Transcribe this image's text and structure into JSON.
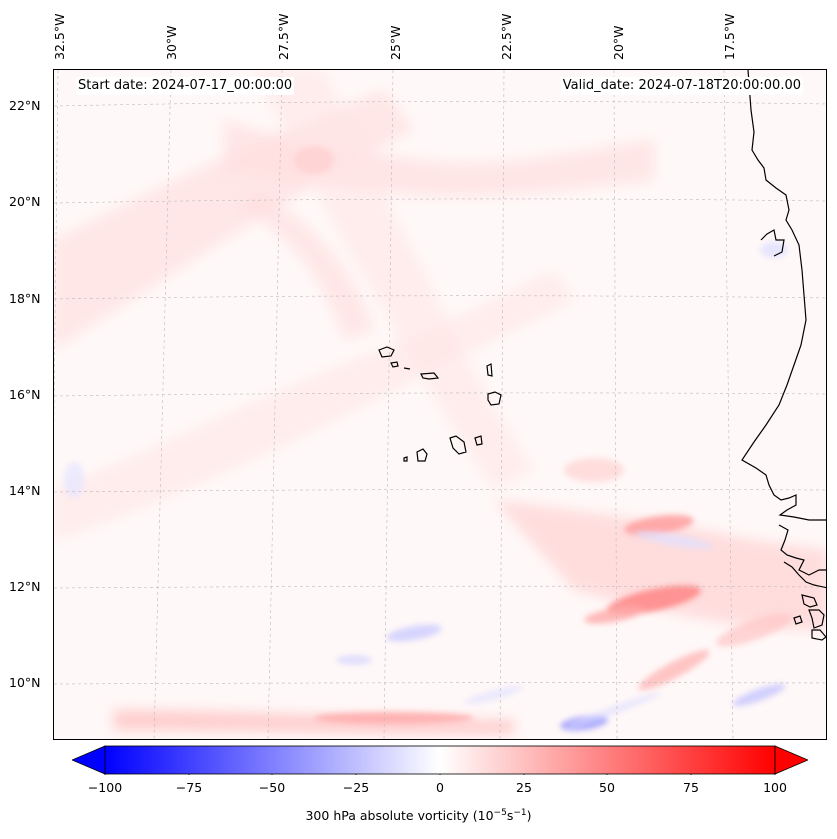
{
  "header": {
    "start_date": "Start date: 2024-07-17_00:00:00",
    "valid_date": "Valid_date: 2024-07-18T20:00:00.00"
  },
  "axes": {
    "longitude_labels": [
      "32.5°W",
      "30°W",
      "27.5°W",
      "25°W",
      "22.5°W",
      "20°W",
      "17.5°W"
    ],
    "latitude_labels": [
      "22°N",
      "20°N",
      "18°N",
      "16°N",
      "14°N",
      "12°N",
      "10°N"
    ],
    "gridlines": true
  },
  "colorbar": {
    "tick_labels": [
      "−100",
      "−75",
      "−50",
      "−25",
      "0",
      "25",
      "50",
      "75",
      "100"
    ],
    "label_text": "300 hPa absolute vorticity (10",
    "label_exp1": "−5",
    "label_mid": "s",
    "label_exp2": "−1",
    "label_end": ")",
    "range": [
      -100,
      100
    ],
    "colormap": "bwr",
    "extend": "both",
    "min_color": "#0000ff",
    "mid_color": "#ffffff",
    "max_color": "#ff0000"
  },
  "map": {
    "field": "300 hPa absolute vorticity",
    "extent_description": "tropical eastern Atlantic, Cape Verde Islands and West African coast",
    "coastline_color": "#000000"
  }
}
